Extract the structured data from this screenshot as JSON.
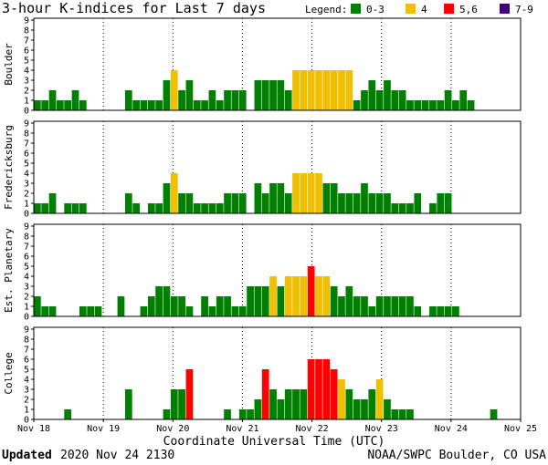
{
  "chart_data": {
    "type": "bar",
    "title": "3-hour K-indices for Last 7 days",
    "legend": {
      "title": "Legend:",
      "items": [
        {
          "label": "0-3",
          "color": "#008000"
        },
        {
          "label": "4",
          "color": "#f0c000"
        },
        {
          "label": "5,6",
          "color": "#ff0000"
        },
        {
          "label": "7-9",
          "color": "#400080"
        }
      ]
    },
    "xlabel": "Coordinate Universal Time (UTC)",
    "x_ticks": [
      "Nov 18",
      "Nov 19",
      "Nov 20",
      "Nov 21",
      "Nov 22",
      "Nov 23",
      "Nov 24",
      "Nov 25"
    ],
    "y_ticks": [
      "0",
      "1",
      "2",
      "3",
      "4",
      "5",
      "6",
      "7",
      "8",
      "9"
    ],
    "ylim": [
      0,
      9
    ],
    "bins_per_day": 8,
    "series": [
      {
        "name": "Boulder",
        "values": [
          1,
          1,
          2,
          1,
          1,
          2,
          1,
          0,
          0,
          0,
          0,
          0,
          2,
          1,
          1,
          1,
          1,
          3,
          4,
          2,
          3,
          1,
          1,
          2,
          1,
          2,
          2,
          2,
          0,
          3,
          3,
          3,
          3,
          2,
          4,
          4,
          4,
          4,
          4,
          4,
          4,
          4,
          1,
          2,
          3,
          2,
          3,
          2,
          2,
          1,
          1,
          1,
          1,
          1,
          2,
          1,
          2,
          1,
          0,
          0,
          0,
          0,
          0,
          0
        ]
      },
      {
        "name": "Fredericksburg",
        "values": [
          1,
          1,
          2,
          0,
          1,
          1,
          1,
          0,
          0,
          0,
          0,
          0,
          2,
          1,
          0,
          1,
          1,
          3,
          4,
          2,
          2,
          1,
          1,
          1,
          1,
          2,
          2,
          2,
          0,
          3,
          2,
          3,
          3,
          2,
          4,
          4,
          4,
          4,
          3,
          3,
          2,
          2,
          2,
          3,
          2,
          2,
          2,
          1,
          1,
          1,
          2,
          0,
          1,
          2,
          2,
          0,
          0,
          0,
          0,
          0,
          0,
          0,
          0,
          0
        ]
      },
      {
        "name": "Est. Planetary",
        "values": [
          2,
          1,
          1,
          0,
          0,
          0,
          1,
          1,
          1,
          0,
          0,
          2,
          0,
          0,
          1,
          2,
          3,
          3,
          2,
          2,
          1,
          0,
          2,
          1,
          2,
          2,
          1,
          1,
          3,
          3,
          3,
          4,
          3,
          4,
          4,
          4,
          5,
          4,
          4,
          3,
          2,
          3,
          2,
          2,
          1,
          2,
          2,
          2,
          2,
          2,
          1,
          0,
          1,
          1,
          1,
          1,
          0,
          0,
          0,
          0,
          0,
          0,
          0,
          0
        ]
      },
      {
        "name": "College",
        "values": [
          0,
          0,
          0,
          0,
          1,
          0,
          0,
          0,
          0,
          0,
          0,
          0,
          3,
          0,
          0,
          0,
          0,
          1,
          3,
          3,
          5,
          0,
          0,
          0,
          0,
          1,
          0,
          1,
          1,
          2,
          5,
          3,
          2,
          3,
          3,
          3,
          6,
          6,
          6,
          5,
          4,
          3,
          2,
          2,
          3,
          4,
          2,
          1,
          1,
          1,
          0,
          0,
          0,
          0,
          0,
          0,
          0,
          0,
          0,
          0,
          1,
          0,
          0,
          0
        ]
      }
    ]
  },
  "footer": {
    "updated_label": "Updated",
    "updated_value": "2020 Nov 24 2130",
    "credit": "NOAA/SWPC Boulder, CO USA"
  }
}
